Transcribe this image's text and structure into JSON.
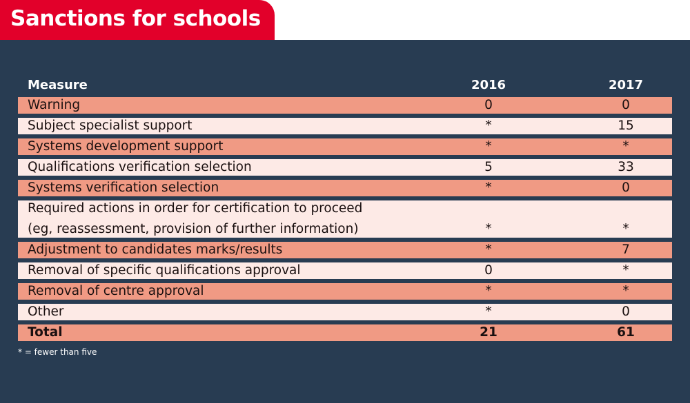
{
  "title": "Sanctions for schools",
  "headers": [
    "Measure",
    "2016",
    "2017"
  ],
  "rows": [
    [
      "Warning",
      "0",
      "0"
    ],
    [
      "Subject specialist support",
      "*",
      "15"
    ],
    [
      "Systems development support",
      "*",
      "*"
    ],
    [
      "Qualifications verification selection",
      "5",
      "33"
    ],
    [
      "Systems verification selection",
      "*",
      "0"
    ],
    [
      "Required actions in order for certification to proceed",
      "*",
      "*",
      "(eg, reassessment, provision of further information)"
    ],
    [
      "Adjustment to candidates marks/results",
      "*",
      "7"
    ],
    [
      "Removal of specific qualifications approval",
      "0",
      "*"
    ],
    [
      "Removal of centre approval",
      "*",
      "*"
    ],
    [
      "Other",
      "*",
      "0"
    ],
    [
      "Total",
      "21",
      "61"
    ]
  ],
  "footnote": "* = fewer than five",
  "colors": {
    "title_bg": "#e2002a",
    "panel_bg": "#283c52",
    "row_dark": "#f09a84",
    "row_light": "#fdeae6"
  }
}
